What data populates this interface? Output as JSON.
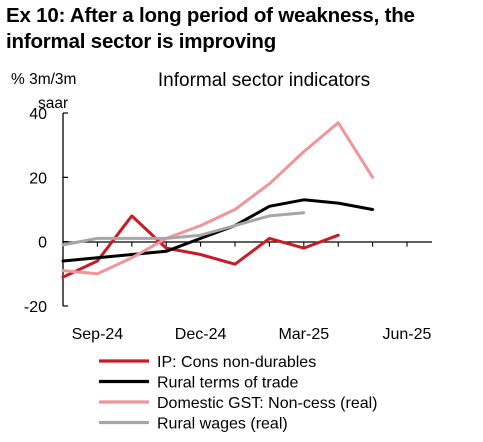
{
  "title_block": {
    "line1": "Ex 10: After a long period of weakness, the",
    "line2": "informal sector is improving"
  },
  "chart_data": {
    "type": "line",
    "title": "Informal sector indicators",
    "ylabel_line1": "% 3m/3m",
    "ylabel_line2": "saar",
    "ylim": [
      -20,
      40
    ],
    "yticks": [
      40,
      20,
      0,
      -20
    ],
    "x": [
      "Aug-24",
      "Sep-24",
      "Oct-24",
      "Nov-24",
      "Dec-24",
      "Jan-25",
      "Feb-25",
      "Mar-25",
      "Apr-25",
      "May-25",
      "Jun-25"
    ],
    "xtick_labels": [
      "Sep-24",
      "Dec-24",
      "Mar-25",
      "Jun-25"
    ],
    "grid": false,
    "legend_position": "bottom",
    "series": [
      {
        "name": "IP: Cons non-durables",
        "color": "#cc1a24",
        "values": [
          -11,
          -6,
          8,
          -2,
          -4,
          -7,
          1,
          -2,
          2,
          null,
          null
        ]
      },
      {
        "name": "Rural terms of trade",
        "color": "#000000",
        "values": [
          -6,
          -5,
          -4,
          -3,
          1,
          5,
          11,
          13,
          12,
          10,
          null
        ]
      },
      {
        "name": "Domestic GST: Non-cess (real)",
        "color": "#f1959a",
        "values": [
          -9,
          -10,
          -5,
          1,
          5,
          10,
          18,
          28,
          37,
          20,
          null
        ]
      },
      {
        "name": "Rural wages (real)",
        "color": "#a6a6a6",
        "values": [
          -1,
          1,
          1,
          1,
          2,
          5,
          8,
          9,
          null,
          null,
          null
        ]
      }
    ]
  }
}
